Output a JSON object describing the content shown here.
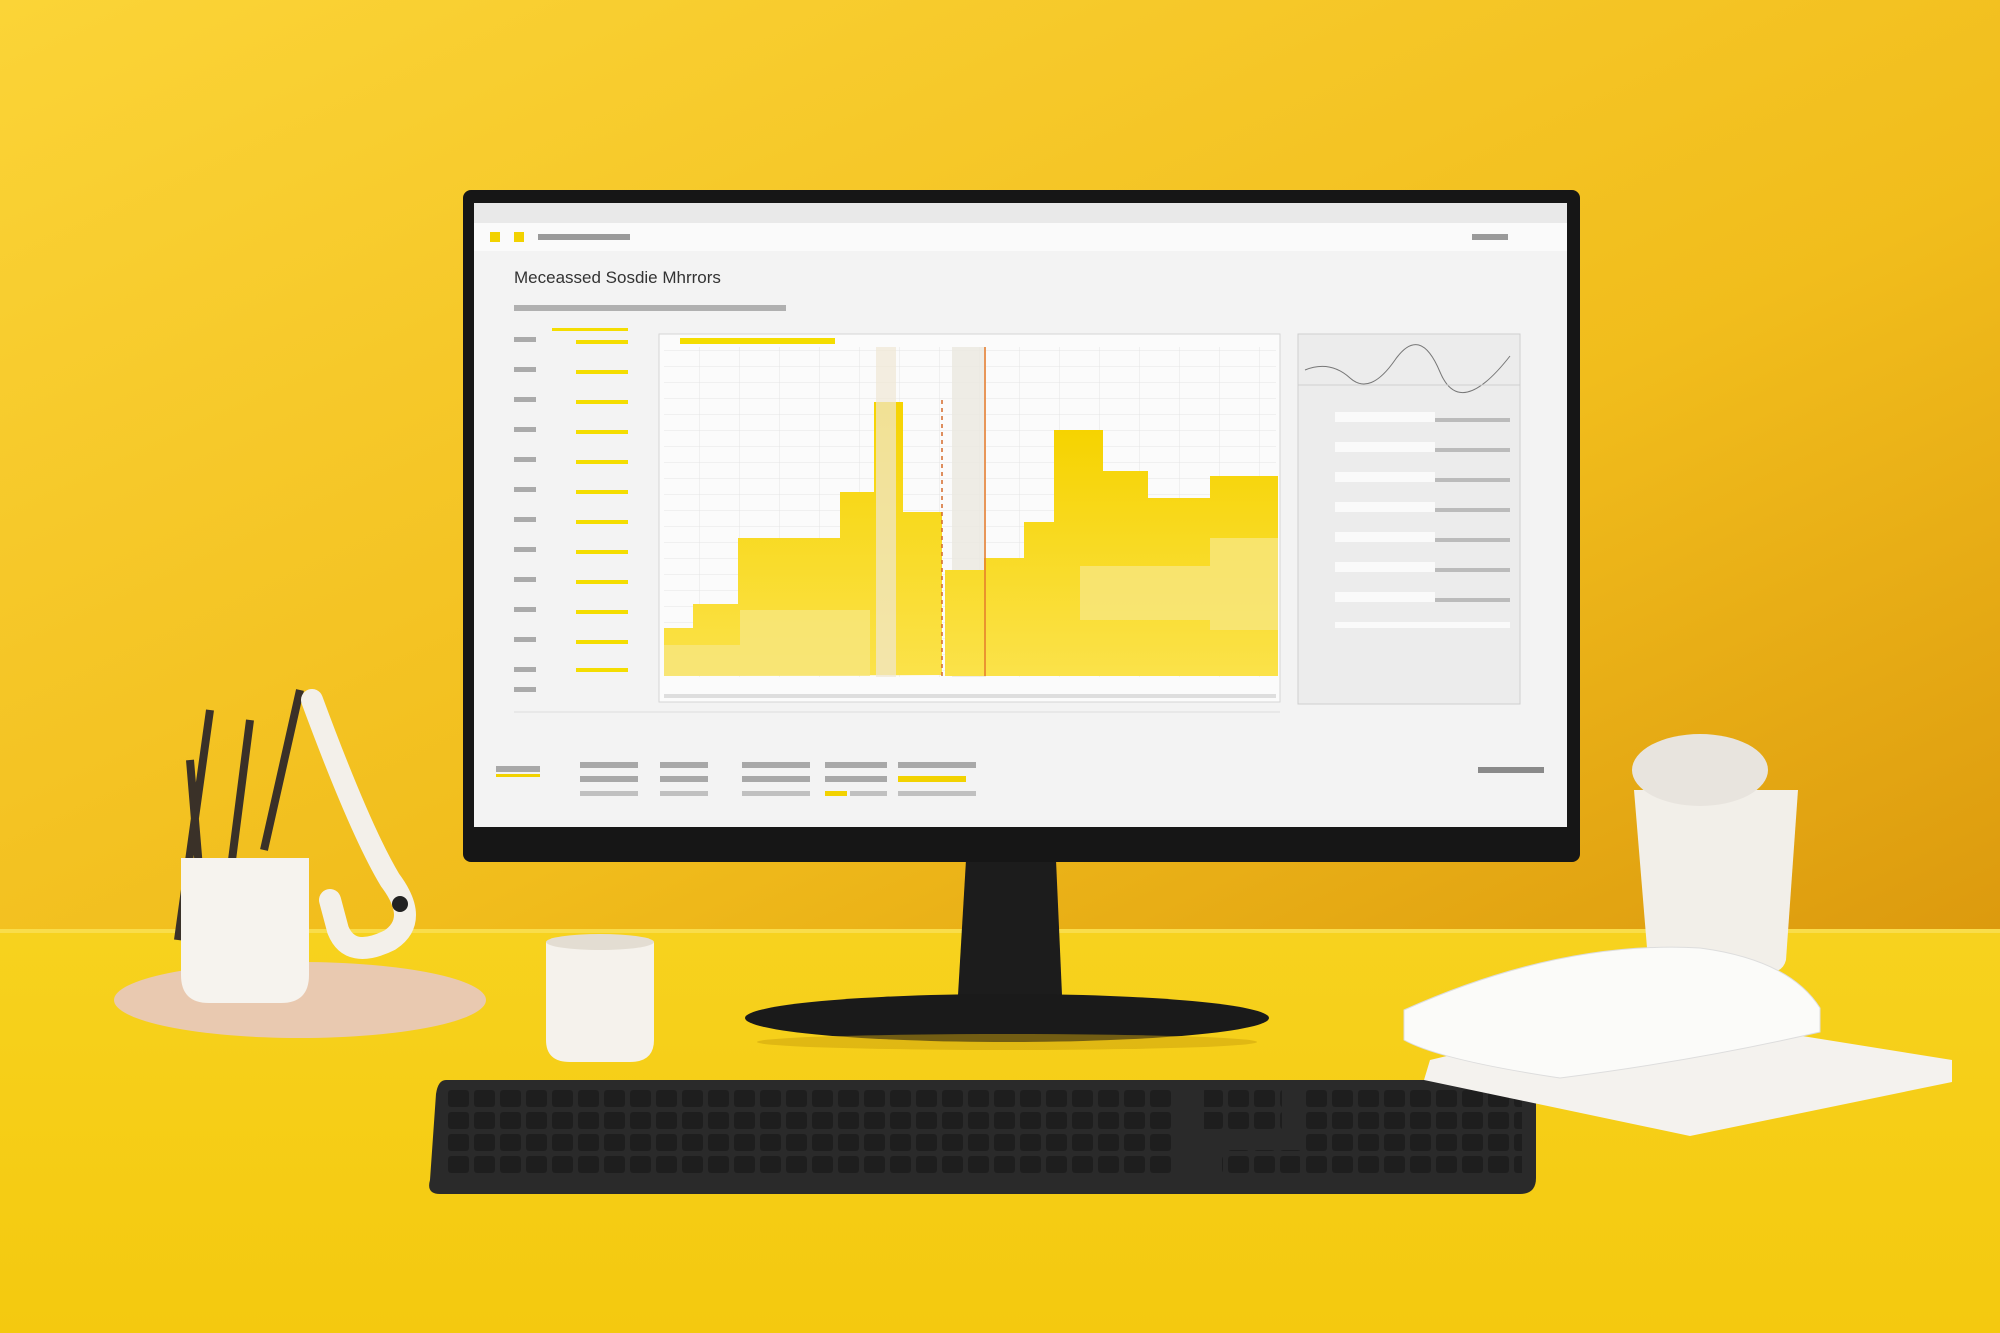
{
  "screen": {
    "title": "Meceassed Sosdie Mhrrors"
  }
}
